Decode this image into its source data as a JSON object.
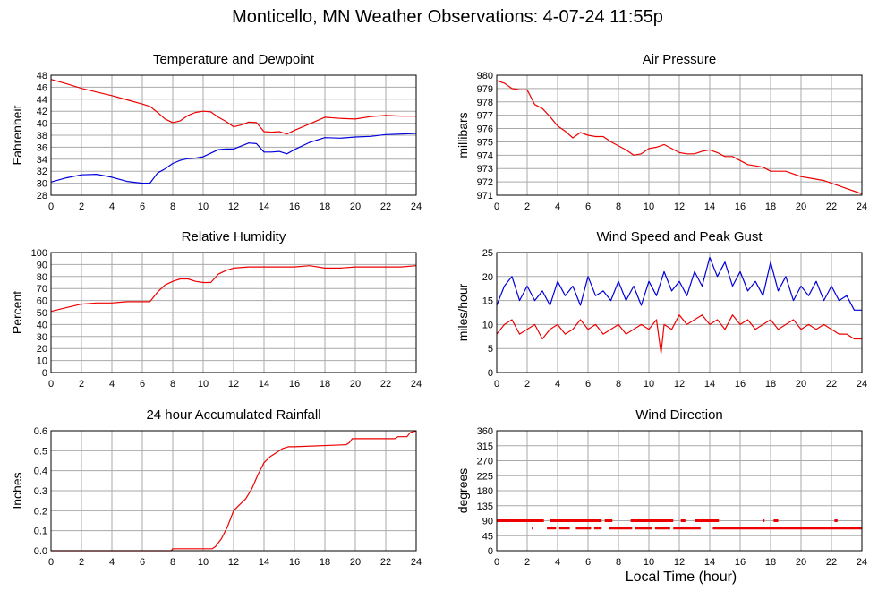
{
  "title": "Monticello, MN Weather Observations: 4-07-24 11:55p",
  "xlabel": "Local Time (hour)",
  "colors": {
    "red": "#ee0000",
    "blue": "#0000dd",
    "grid": "#aaaaaa",
    "frame": "#000000"
  },
  "chart_data": [
    {
      "id": "temp",
      "type": "line",
      "title": "Temperature and Dewpoint",
      "ylabel": "Fahrenheit",
      "xlim": [
        0,
        24
      ],
      "ylim": [
        28,
        48
      ],
      "xticks": [
        "0",
        "2",
        "4",
        "6",
        "8",
        "10",
        "12",
        "14",
        "16",
        "18",
        "20",
        "22",
        "24"
      ],
      "yticks": [
        "28",
        "30",
        "32",
        "34",
        "36",
        "38",
        "40",
        "42",
        "44",
        "46",
        "48"
      ],
      "grid": true,
      "series": [
        {
          "color": "red",
          "x": [
            0,
            1,
            2,
            3,
            4,
            5,
            6,
            6.5,
            7,
            7.5,
            8,
            8.5,
            9,
            9.5,
            10,
            10.5,
            11,
            11.5,
            12,
            12.5,
            13,
            13.5,
            14,
            14.5,
            15,
            15.5,
            16,
            17,
            18,
            19,
            20,
            21,
            22,
            23,
            24
          ],
          "y": [
            47.3,
            46.6,
            45.8,
            45.2,
            44.6,
            43.9,
            43.2,
            42.8,
            41.8,
            40.7,
            40.1,
            40.4,
            41.3,
            41.8,
            42.0,
            41.9,
            41.0,
            40.3,
            39.4,
            39.7,
            40.2,
            40.1,
            38.6,
            38.5,
            38.6,
            38.2,
            38.8,
            39.9,
            41.0,
            40.8,
            40.7,
            41.1,
            41.3,
            41.2,
            41.2
          ]
        },
        {
          "color": "blue",
          "x": [
            0,
            1,
            2,
            3,
            4,
            5,
            6,
            6.5,
            7,
            7.5,
            8,
            8.5,
            9,
            9.5,
            10,
            10.5,
            11,
            11.5,
            12,
            12.5,
            13,
            13.5,
            14,
            14.5,
            15,
            15.5,
            16,
            17,
            18,
            19,
            20,
            21,
            22,
            23,
            24
          ],
          "y": [
            30.2,
            30.9,
            31.4,
            31.5,
            31.0,
            30.3,
            30.0,
            30.0,
            31.7,
            32.4,
            33.3,
            33.8,
            34.1,
            34.2,
            34.4,
            35.0,
            35.6,
            35.7,
            35.7,
            36.2,
            36.7,
            36.6,
            35.2,
            35.2,
            35.3,
            34.9,
            35.6,
            36.8,
            37.6,
            37.5,
            37.7,
            37.8,
            38.1,
            38.2,
            38.3
          ]
        }
      ]
    },
    {
      "id": "pressure",
      "type": "line",
      "title": "Air Pressure",
      "ylabel": "millibars",
      "xlim": [
        0,
        24
      ],
      "ylim": [
        971,
        980
      ],
      "xticks": [
        "0",
        "2",
        "4",
        "6",
        "8",
        "10",
        "12",
        "14",
        "16",
        "18",
        "20",
        "22",
        "24"
      ],
      "yticks": [
        "971",
        "972",
        "973",
        "974",
        "975",
        "976",
        "977",
        "978",
        "979",
        "980"
      ],
      "grid": true,
      "series": [
        {
          "color": "red",
          "x": [
            0,
            0.5,
            1,
            1.5,
            2,
            2.5,
            3,
            3.5,
            4,
            4.5,
            5,
            5.5,
            6,
            6.5,
            7,
            7.5,
            8,
            8.5,
            9,
            9.5,
            10,
            10.5,
            11,
            11.5,
            12,
            12.5,
            13,
            13.5,
            14,
            14.5,
            15,
            15.5,
            16,
            16.5,
            17,
            17.5,
            18,
            18.5,
            19,
            19.5,
            20,
            20.5,
            21,
            21.5,
            22,
            22.5,
            23,
            23.5,
            24
          ],
          "y": [
            979.6,
            979.4,
            979.0,
            978.9,
            978.9,
            977.8,
            977.5,
            976.9,
            976.2,
            975.8,
            975.3,
            975.7,
            975.5,
            975.4,
            975.4,
            975.0,
            974.7,
            974.4,
            974.0,
            974.1,
            974.5,
            974.6,
            974.8,
            974.5,
            974.2,
            974.1,
            974.1,
            974.3,
            974.4,
            974.2,
            973.9,
            973.9,
            973.6,
            973.3,
            973.2,
            973.1,
            972.8,
            972.8,
            972.8,
            972.6,
            972.4,
            972.3,
            972.2,
            972.1,
            971.9,
            971.7,
            971.5,
            971.3,
            971.1
          ]
        }
      ]
    },
    {
      "id": "humidity",
      "type": "line",
      "title": "Relative Humidity",
      "ylabel": "Percent",
      "xlim": [
        0,
        24
      ],
      "ylim": [
        0,
        100
      ],
      "xticks": [
        "0",
        "2",
        "4",
        "6",
        "8",
        "10",
        "12",
        "14",
        "16",
        "18",
        "20",
        "22",
        "24"
      ],
      "yticks": [
        "0",
        "10",
        "20",
        "30",
        "40",
        "50",
        "60",
        "70",
        "80",
        "90",
        "100"
      ],
      "grid": true,
      "series": [
        {
          "color": "red",
          "x": [
            0,
            1,
            2,
            3,
            4,
            5,
            6,
            6.5,
            7,
            7.5,
            8,
            8.5,
            9,
            9.5,
            10,
            10.5,
            11,
            11.5,
            12,
            13,
            14,
            15,
            16,
            17,
            18,
            19,
            20,
            21,
            22,
            23,
            24
          ],
          "y": [
            51,
            54,
            57,
            58,
            58,
            59,
            59,
            59,
            67,
            73,
            76,
            78,
            78,
            76,
            75,
            75,
            82,
            85,
            87,
            88,
            88,
            88,
            88,
            89,
            87,
            87,
            88,
            88,
            88,
            88,
            89
          ]
        }
      ]
    },
    {
      "id": "wind",
      "type": "line",
      "title": "Wind Speed and Peak Gust",
      "ylabel": "miles/hour",
      "xlim": [
        0,
        24
      ],
      "ylim": [
        0,
        25
      ],
      "xticks": [
        "0",
        "2",
        "4",
        "6",
        "8",
        "10",
        "12",
        "14",
        "16",
        "18",
        "20",
        "22",
        "24"
      ],
      "yticks": [
        "0",
        "5",
        "10",
        "15",
        "20",
        "25"
      ],
      "grid": true,
      "series": [
        {
          "color": "blue",
          "x": [
            0,
            0.5,
            1,
            1.5,
            2,
            2.5,
            3,
            3.5,
            4,
            4.5,
            5,
            5.5,
            6,
            6.5,
            7,
            7.5,
            8,
            8.5,
            9,
            9.5,
            10,
            10.5,
            11,
            11.5,
            12,
            12.5,
            13,
            13.5,
            14,
            14.5,
            15,
            15.5,
            16,
            16.5,
            17,
            17.5,
            18,
            18.5,
            19,
            19.5,
            20,
            20.5,
            21,
            21.5,
            22,
            22.5,
            23,
            23.5,
            24
          ],
          "y": [
            14,
            18,
            20,
            15,
            18,
            15,
            17,
            14,
            19,
            16,
            18,
            14,
            20,
            16,
            17,
            15,
            19,
            15,
            18,
            14,
            19,
            16,
            21,
            17,
            19,
            16,
            21,
            18,
            24,
            20,
            23,
            18,
            21,
            17,
            19,
            16,
            23,
            17,
            20,
            15,
            18,
            16,
            19,
            15,
            18,
            15,
            16,
            13,
            13
          ]
        },
        {
          "color": "red",
          "x": [
            0,
            0.5,
            1,
            1.5,
            2,
            2.5,
            3,
            3.5,
            4,
            4.5,
            5,
            5.5,
            6,
            6.5,
            7,
            7.5,
            8,
            8.5,
            9,
            9.5,
            10,
            10.5,
            10.8,
            11,
            11.5,
            12,
            12.5,
            13,
            13.5,
            14,
            14.5,
            15,
            15.5,
            16,
            16.5,
            17,
            17.5,
            18,
            18.5,
            19,
            19.5,
            20,
            20.5,
            21,
            21.5,
            22,
            22.5,
            23,
            23.5,
            24
          ],
          "y": [
            8,
            10,
            11,
            8,
            9,
            10,
            7,
            9,
            10,
            8,
            9,
            11,
            9,
            10,
            8,
            9,
            10,
            8,
            9,
            10,
            9,
            11,
            4,
            10,
            9,
            12,
            10,
            11,
            12,
            10,
            11,
            9,
            12,
            10,
            11,
            9,
            10,
            11,
            9,
            10,
            11,
            9,
            10,
            9,
            10,
            9,
            8,
            8,
            7,
            7
          ]
        }
      ]
    },
    {
      "id": "rain",
      "type": "line",
      "title": "24 hour Accumulated Rainfall",
      "ylabel": "Inches",
      "xlim": [
        0,
        24
      ],
      "ylim": [
        0,
        0.6
      ],
      "xticks": [
        "0",
        "2",
        "4",
        "6",
        "8",
        "10",
        "12",
        "14",
        "16",
        "18",
        "20",
        "22",
        "24"
      ],
      "yticks": [
        "0.0",
        "0.1",
        "0.2",
        "0.3",
        "0.4",
        "0.5",
        "0.6"
      ],
      "grid": true,
      "series": [
        {
          "color": "red",
          "x": [
            0,
            7.9,
            8,
            10.6,
            10.8,
            11.2,
            11.6,
            12,
            12.4,
            12.8,
            13.2,
            13.6,
            14,
            14.4,
            14.8,
            15.2,
            15.6,
            16,
            19.4,
            19.6,
            19.8,
            22.6,
            22.8,
            23.4,
            23.6,
            24
          ],
          "y": [
            0,
            0,
            0.01,
            0.01,
            0.02,
            0.06,
            0.12,
            0.2,
            0.23,
            0.26,
            0.31,
            0.38,
            0.44,
            0.47,
            0.49,
            0.51,
            0.52,
            0.52,
            0.53,
            0.54,
            0.56,
            0.56,
            0.57,
            0.57,
            0.59,
            0.6
          ]
        }
      ]
    },
    {
      "id": "direction",
      "type": "scatter",
      "title": "Wind Direction",
      "ylabel": "degrees",
      "xlim": [
        0,
        24
      ],
      "ylim": [
        0,
        360
      ],
      "xticks": [
        "0",
        "2",
        "4",
        "6",
        "8",
        "10",
        "12",
        "14",
        "16",
        "18",
        "20",
        "22",
        "24"
      ],
      "yticks": [
        "0",
        "45",
        "90",
        "135",
        "180",
        "225",
        "270",
        "315",
        "360"
      ],
      "grid": true,
      "series": [
        {
          "color": "red",
          "segments": [
            {
              "y": 90,
              "x0": 0.0,
              "x1": 3.1
            },
            {
              "y": 90,
              "x0": 3.5,
              "x1": 6.9
            },
            {
              "y": 90,
              "x0": 7.1,
              "x1": 7.6
            },
            {
              "y": 90,
              "x0": 8.8,
              "x1": 11.6
            },
            {
              "y": 90,
              "x0": 12.1,
              "x1": 12.4
            },
            {
              "y": 90,
              "x0": 13.0,
              "x1": 14.6
            },
            {
              "y": 90,
              "x0": 17.5,
              "x1": 17.6
            },
            {
              "y": 90,
              "x0": 18.2,
              "x1": 18.5
            },
            {
              "y": 90,
              "x0": 22.2,
              "x1": 22.4
            },
            {
              "y": 68,
              "x0": 2.3,
              "x1": 2.4
            },
            {
              "y": 68,
              "x0": 3.3,
              "x1": 3.9
            },
            {
              "y": 68,
              "x0": 4.1,
              "x1": 4.8
            },
            {
              "y": 68,
              "x0": 5.2,
              "x1": 6.2
            },
            {
              "y": 68,
              "x0": 6.4,
              "x1": 6.9
            },
            {
              "y": 68,
              "x0": 7.4,
              "x1": 8.9
            },
            {
              "y": 68,
              "x0": 9.1,
              "x1": 10.2
            },
            {
              "y": 68,
              "x0": 10.4,
              "x1": 11.4
            },
            {
              "y": 68,
              "x0": 11.6,
              "x1": 13.4
            },
            {
              "y": 68,
              "x0": 14.2,
              "x1": 24.0
            }
          ]
        }
      ]
    }
  ]
}
